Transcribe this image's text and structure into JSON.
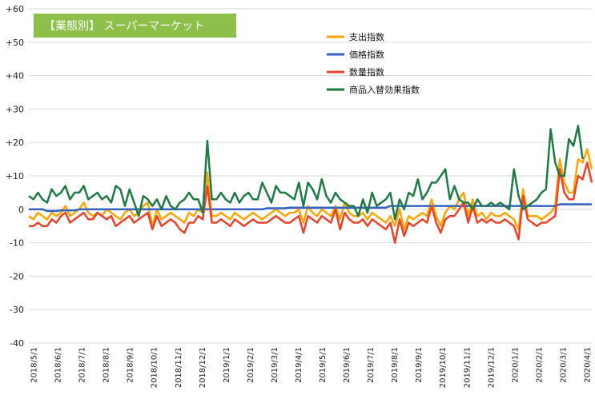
{
  "chart_data": {
    "type": "line",
    "title": "【業態別】 スーパーマーケット",
    "title_bg_color": "#8dc04a",
    "ylim": [
      -40,
      60
    ],
    "yticks": [
      "+60",
      "+50",
      "+40",
      "+30",
      "+20",
      "+10",
      "0",
      "-10",
      "-20",
      "-30",
      "-40"
    ],
    "ytick_values": [
      60,
      50,
      40,
      30,
      20,
      10,
      0,
      -10,
      -20,
      -30,
      -40
    ],
    "xlabels": [
      "2018/5/1",
      "2018/6/1",
      "2018/7/1",
      "2018/8/1",
      "2018/9/1",
      "2018/10/1",
      "2018/11/1",
      "2018/12/1",
      "2019/1/1",
      "2019/2/1",
      "2019/3/1",
      "2019/4/1",
      "2019/5/1",
      "2019/6/1",
      "2019/7/1",
      "2019/8/1",
      "2019/9/1",
      "2019/10/1",
      "2019/11/1",
      "2019/12/1",
      "2020/1/1",
      "2020/2/1",
      "2020/3/1",
      "2020/4/1"
    ],
    "grid": "horizontal",
    "legend_position": "top-right",
    "series": [
      {
        "name": "支出指数",
        "color": "#ffa500",
        "values": [
          -2,
          -3,
          -1,
          -2,
          -3,
          -1,
          -2,
          -1,
          1,
          -2,
          -1,
          0,
          2,
          -1,
          -2,
          -1,
          -2,
          0,
          -1,
          -2,
          -3,
          -1,
          0,
          -2,
          -1,
          1,
          2,
          -5,
          0,
          -3,
          -2,
          -1,
          -2,
          -3,
          -4,
          -1,
          -2,
          0,
          -1,
          11,
          -2,
          -2,
          -1,
          -2,
          -3,
          -1,
          -2,
          -3,
          -2,
          -1,
          -2,
          -3,
          -2,
          -1,
          0,
          -1,
          -2,
          -1,
          -1,
          0,
          -4,
          1,
          -1,
          -2,
          0,
          -1,
          -2,
          1,
          -3,
          2,
          -1,
          -2,
          -2,
          -1,
          -3,
          -1,
          -2,
          -3,
          -4,
          -2,
          -5,
          0,
          -6,
          -2,
          -3,
          -2,
          -1,
          -2,
          3,
          -2,
          -5,
          -1,
          1,
          0,
          3,
          5,
          -2,
          3,
          -2,
          -1,
          -3,
          -1,
          -2,
          -2,
          -1,
          -2,
          -3,
          -6,
          6,
          -2,
          -2,
          -2,
          -3,
          -2,
          -1,
          1,
          15,
          8,
          5,
          5,
          15,
          14,
          18,
          12
        ]
      },
      {
        "name": "価格指数",
        "color": "#3162c4",
        "values": [
          0,
          0,
          0,
          0,
          -0.5,
          -0.5,
          -0.5,
          -0.3,
          -0.3,
          -0.3,
          -0.3,
          0,
          0,
          0,
          0,
          0,
          0,
          0,
          0,
          0,
          0,
          0,
          0,
          0,
          0,
          0,
          0,
          0,
          0,
          0,
          0,
          0,
          0,
          0,
          0,
          0,
          0,
          0,
          0,
          0,
          0,
          0,
          0,
          0,
          0,
          0,
          0,
          0,
          0,
          0,
          0,
          0,
          0.3,
          0.3,
          0.3,
          0.3,
          0.3,
          0.5,
          0.5,
          0.5,
          0.5,
          0.5,
          0.5,
          0.5,
          0.5,
          0.5,
          0.5,
          0.5,
          0.5,
          0.5,
          0.5,
          0.5,
          0.5,
          0.5,
          0.5,
          0.5,
          0.5,
          0.5,
          0.5,
          1,
          1,
          1,
          1,
          1,
          1,
          1,
          1,
          1,
          1,
          1,
          1,
          1,
          1,
          1,
          1,
          1,
          1,
          1,
          1,
          1,
          1,
          1,
          1,
          1,
          1,
          1,
          1,
          1,
          1,
          1,
          1,
          1,
          1,
          1,
          1,
          1,
          1.5,
          1.5,
          1.5,
          1.5,
          1.5,
          1.5,
          1.5,
          1.5
        ]
      },
      {
        "name": "数量指数",
        "color": "#e8442b",
        "values": [
          -5,
          -5,
          -4,
          -5,
          -5,
          -3,
          -4,
          -2,
          -1,
          -4,
          -3,
          -2,
          -1,
          -3,
          -3,
          -1,
          -2,
          -3,
          -2,
          -5,
          -4,
          -3,
          -2,
          -4,
          -3,
          -2,
          -1,
          -6,
          -2,
          -5,
          -4,
          -3,
          -4,
          -6,
          -7,
          -4,
          -4,
          -2,
          -3,
          7,
          -4,
          -4,
          -3,
          -4,
          -5,
          -3,
          -4,
          -5,
          -4,
          -3,
          -4,
          -4,
          -4,
          -3,
          -2,
          -3,
          -4,
          -4,
          -3,
          -2,
          -7,
          -2,
          -3,
          -4,
          -2,
          -3,
          -4,
          0,
          -6,
          -1,
          -3,
          -4,
          -4,
          -3,
          -5,
          -3,
          -4,
          -5,
          -6,
          -4,
          -10,
          -3,
          -8,
          -4,
          -5,
          -4,
          -3,
          -4,
          1,
          -4,
          -7,
          -3,
          -2,
          -2,
          0,
          2,
          -4,
          1,
          -4,
          -3,
          -4,
          -3,
          -4,
          -4,
          -3,
          -4,
          -5,
          -9,
          4,
          -3,
          -4,
          -5,
          -4,
          -4,
          -3,
          -2,
          12,
          5,
          3,
          3,
          10,
          9,
          14,
          8
        ]
      },
      {
        "name": "商品入替効果指数",
        "color": "#1e7b44",
        "values": [
          4,
          3,
          5,
          3,
          2,
          6,
          4,
          5,
          7,
          3,
          5,
          5,
          7,
          3,
          4,
          5,
          3,
          4,
          2,
          7,
          6,
          1,
          6,
          2,
          -2,
          4,
          3,
          1,
          3,
          0,
          4,
          1,
          0,
          2,
          3,
          5,
          3,
          3,
          -1,
          20.5,
          3,
          3,
          5,
          3,
          2,
          5,
          2,
          4,
          5,
          3,
          3,
          8,
          5,
          2,
          7,
          5,
          5,
          4,
          3,
          8,
          1,
          8,
          6,
          3,
          9,
          4,
          2,
          5,
          3,
          2,
          1,
          1,
          -2,
          3,
          -1,
          5,
          1,
          2,
          3,
          5,
          -3,
          3,
          0,
          5,
          4,
          9,
          3,
          5,
          8,
          8,
          10,
          12,
          3,
          7,
          3,
          2,
          2,
          0,
          3,
          1,
          1,
          2,
          1,
          2,
          1,
          0,
          12,
          4,
          0,
          1,
          2,
          3,
          5,
          6,
          24,
          14,
          10,
          10,
          21,
          19,
          25,
          15
        ]
      }
    ]
  }
}
